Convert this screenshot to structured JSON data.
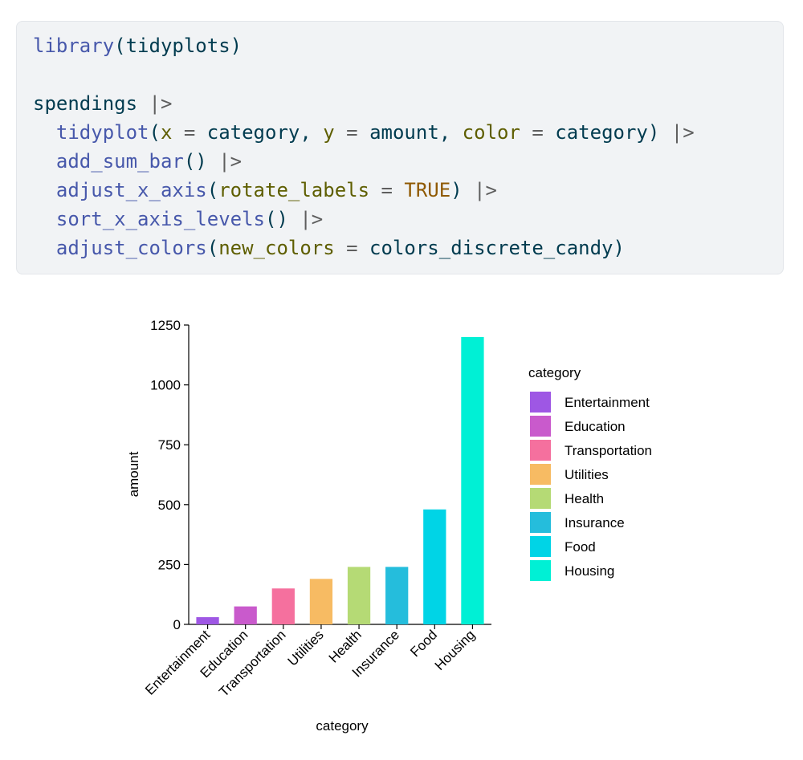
{
  "code": {
    "lines": [
      [
        {
          "t": "library",
          "c": "fn"
        },
        {
          "t": "(tidyplots)",
          "c": "punc"
        }
      ],
      [],
      [
        {
          "t": "spendings ",
          "c": "var"
        },
        {
          "t": "|>",
          "c": "op"
        }
      ],
      [
        {
          "t": "  ",
          "c": "punc"
        },
        {
          "t": "tidyplot",
          "c": "fn"
        },
        {
          "t": "(",
          "c": "punc"
        },
        {
          "t": "x",
          "c": "arg"
        },
        {
          "t": " ",
          "c": "punc"
        },
        {
          "t": "=",
          "c": "op"
        },
        {
          "t": " category, ",
          "c": "var"
        },
        {
          "t": "y",
          "c": "arg"
        },
        {
          "t": " ",
          "c": "punc"
        },
        {
          "t": "=",
          "c": "op"
        },
        {
          "t": " amount, ",
          "c": "var"
        },
        {
          "t": "color",
          "c": "arg"
        },
        {
          "t": " ",
          "c": "punc"
        },
        {
          "t": "=",
          "c": "op"
        },
        {
          "t": " category) ",
          "c": "var"
        },
        {
          "t": "|>",
          "c": "op"
        }
      ],
      [
        {
          "t": "  ",
          "c": "punc"
        },
        {
          "t": "add_sum_bar",
          "c": "fn"
        },
        {
          "t": "() ",
          "c": "punc"
        },
        {
          "t": "|>",
          "c": "op"
        }
      ],
      [
        {
          "t": "  ",
          "c": "punc"
        },
        {
          "t": "adjust_x_axis",
          "c": "fn"
        },
        {
          "t": "(",
          "c": "punc"
        },
        {
          "t": "rotate_labels",
          "c": "arg"
        },
        {
          "t": " ",
          "c": "punc"
        },
        {
          "t": "=",
          "c": "op"
        },
        {
          "t": " ",
          "c": "punc"
        },
        {
          "t": "TRUE",
          "c": "const"
        },
        {
          "t": ") ",
          "c": "punc"
        },
        {
          "t": "|>",
          "c": "op"
        }
      ],
      [
        {
          "t": "  ",
          "c": "punc"
        },
        {
          "t": "sort_x_axis_levels",
          "c": "fn"
        },
        {
          "t": "() ",
          "c": "punc"
        },
        {
          "t": "|>",
          "c": "op"
        }
      ],
      [
        {
          "t": "  ",
          "c": "punc"
        },
        {
          "t": "adjust_colors",
          "c": "fn"
        },
        {
          "t": "(",
          "c": "punc"
        },
        {
          "t": "new_colors",
          "c": "arg"
        },
        {
          "t": " ",
          "c": "punc"
        },
        {
          "t": "=",
          "c": "op"
        },
        {
          "t": " colors_discrete_candy)",
          "c": "var"
        }
      ]
    ]
  },
  "chart_data": {
    "type": "bar",
    "categories": [
      "Entertainment",
      "Education",
      "Transportation",
      "Utilities",
      "Health",
      "Insurance",
      "Food",
      "Housing"
    ],
    "values": [
      30,
      75,
      150,
      190,
      240,
      240,
      480,
      1200
    ],
    "colors": [
      "#9e57e4",
      "#c95acc",
      "#f5709e",
      "#f7bb63",
      "#b5da75",
      "#25bddc",
      "#00d4e6",
      "#00f0d5"
    ],
    "xlabel": "category",
    "ylabel": "amount",
    "ylim": [
      0,
      1250
    ],
    "yticks": [
      0,
      250,
      500,
      750,
      1000,
      1250
    ],
    "x_labels_rotated": true,
    "legend": {
      "title": "category",
      "placement": "right",
      "entries": [
        "Entertainment",
        "Education",
        "Transportation",
        "Utilities",
        "Health",
        "Insurance",
        "Food",
        "Housing"
      ]
    },
    "grid": false
  }
}
